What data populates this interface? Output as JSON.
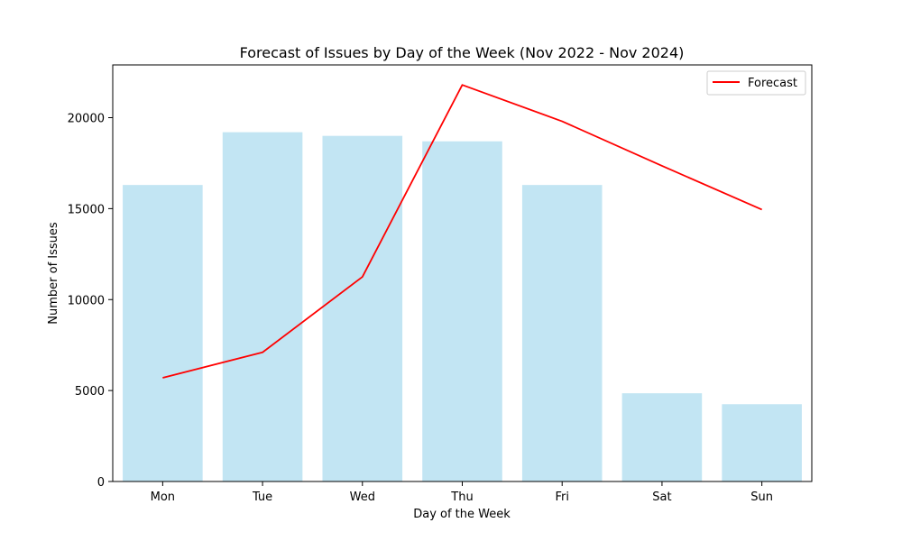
{
  "chart_data": {
    "type": "bar",
    "title": "Forecast of Issues by Day of the Week (Nov 2022 - Nov 2024)",
    "xlabel": "Day of the Week",
    "ylabel": "Number of Issues",
    "categories": [
      "Mon",
      "Tue",
      "Wed",
      "Thu",
      "Fri",
      "Sat",
      "Sun"
    ],
    "ylim": [
      0,
      22900
    ],
    "yticks": [
      0,
      5000,
      10000,
      15000,
      20000
    ],
    "grid": false,
    "legend_position": "top-right",
    "series": [
      {
        "type": "bar",
        "values": [
          16300,
          19200,
          19000,
          18700,
          16300,
          4850,
          4250
        ],
        "color": "#c2e5f3"
      },
      {
        "type": "line",
        "name": "Forecast",
        "values": [
          5700,
          7100,
          11250,
          21800,
          19800,
          17350,
          14950
        ],
        "color": "#ff0000"
      }
    ]
  }
}
